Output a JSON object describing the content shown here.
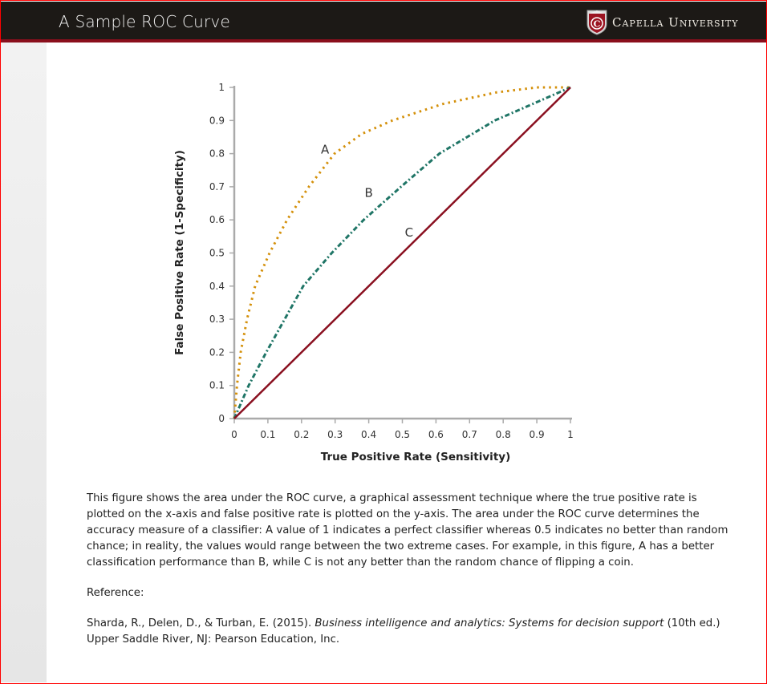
{
  "header": {
    "title": "A Sample ROC Curve",
    "logo_text": "Capella University"
  },
  "chart_data": {
    "type": "line",
    "title": "",
    "xlabel": "True Positive Rate (Sensitivity)",
    "ylabel": "False Positive Rate (1-Specificity)",
    "xlim": [
      0,
      1
    ],
    "ylim": [
      0,
      1
    ],
    "x_ticks": [
      "0",
      "0.1",
      "0.2",
      "0.3",
      "0.4",
      "0.5",
      "0.6",
      "0.7",
      "0.8",
      "0.9",
      "1"
    ],
    "y_ticks": [
      "0",
      "0.1",
      "0.2",
      "0.3",
      "0.4",
      "0.5",
      "0.6",
      "0.7",
      "0.8",
      "0.9",
      "1"
    ],
    "grid": false,
    "series": [
      {
        "name": "A",
        "color": "#d4900a",
        "style": "dotted",
        "x": [
          0,
          0.008,
          0.019,
          0.038,
          0.062,
          0.105,
          0.157,
          0.222,
          0.298,
          0.38,
          0.47,
          0.62,
          0.78,
          0.9,
          1
        ],
        "y": [
          0,
          0.1,
          0.2,
          0.3,
          0.4,
          0.5,
          0.6,
          0.7,
          0.8,
          0.86,
          0.9,
          0.95,
          0.985,
          1,
          1
        ]
      },
      {
        "name": "B",
        "color": "#1f7566",
        "style": "dash-dot",
        "x": [
          0,
          0.043,
          0.095,
          0.15,
          0.205,
          0.29,
          0.385,
          0.496,
          0.61,
          0.775,
          1
        ],
        "y": [
          0,
          0.1,
          0.2,
          0.3,
          0.4,
          0.5,
          0.6,
          0.7,
          0.8,
          0.9,
          1
        ]
      },
      {
        "name": "C",
        "color": "#8a1020",
        "style": "solid",
        "x": [
          0,
          1
        ],
        "y": [
          0,
          1
        ]
      }
    ]
  },
  "caption": {
    "body": "This figure shows the area under the ROC curve, a graphical assessment technique where the true positive rate is plotted on the x-axis and false positive rate is plotted on the y-axis. The area under the ROC curve determines the accuracy measure of a classifier: A value of 1 indicates a perfect classifier whereas 0.5 indicates no better than random chance; in reality, the values would range between the two extreme cases. For example, in this figure, A has a better classification performance than B, while C is not any better than the random chance of flipping a coin.",
    "reference_label": "Reference:",
    "ref_authors": "Sharda, R., Delen, D., & Turban, E. (2015). ",
    "ref_title": "Business intelligence and analytics: Systems for decision support",
    "ref_rest": " (10th ed.) Upper Saddle River, NJ: Pearson Education, Inc."
  }
}
